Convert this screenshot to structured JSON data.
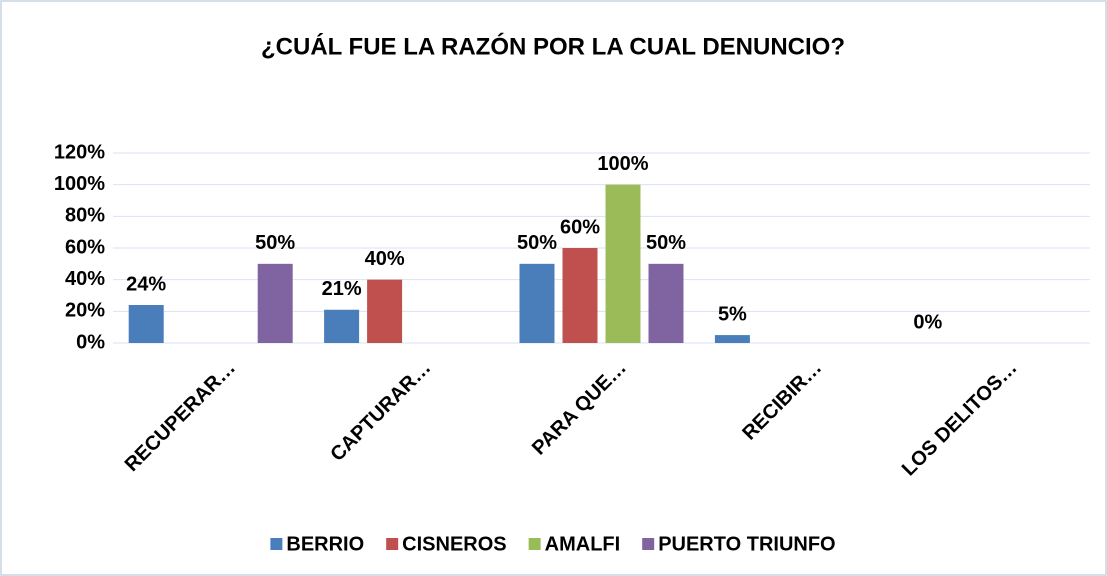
{
  "chart_data": {
    "type": "bar",
    "title": "¿CUÁL FUE LA RAZÓN POR LA CUAL DENUNCIO?",
    "categories": [
      "RECUPERAR…",
      "CAPTURAR…",
      "PARA QUE…",
      "RECIBIR…",
      "LOS DELITOS…"
    ],
    "series": [
      {
        "name": "BERRIO",
        "color": "#4a7ebb",
        "values": [
          24,
          21,
          50,
          5,
          0
        ],
        "value_labels": [
          "24%",
          "21%",
          "50%",
          "5%",
          "0%"
        ]
      },
      {
        "name": "CISNEROS",
        "color": "#c0504d",
        "values": [
          null,
          40,
          60,
          null,
          null
        ],
        "value_labels": [
          null,
          "40%",
          "60%",
          null,
          null
        ]
      },
      {
        "name": "AMALFI",
        "color": "#9bbb59",
        "values": [
          null,
          null,
          100,
          null,
          null
        ],
        "value_labels": [
          null,
          null,
          "100%",
          null,
          null
        ]
      },
      {
        "name": "PUERTO TRIUNFO",
        "color": "#8064a2",
        "values": [
          50,
          null,
          50,
          null,
          null
        ],
        "value_labels": [
          "50%",
          null,
          "50%",
          null,
          null
        ]
      }
    ],
    "ylim": [
      0,
      120
    ],
    "yticks": [
      {
        "value": 0,
        "label": "0%"
      },
      {
        "value": 20,
        "label": "20%"
      },
      {
        "value": 40,
        "label": "40%"
      },
      {
        "value": 60,
        "label": "60%"
      },
      {
        "value": 80,
        "label": "80%"
      },
      {
        "value": 100,
        "label": "100%"
      },
      {
        "value": 120,
        "label": "120%"
      }
    ],
    "grid": true,
    "legend": "bottom"
  }
}
